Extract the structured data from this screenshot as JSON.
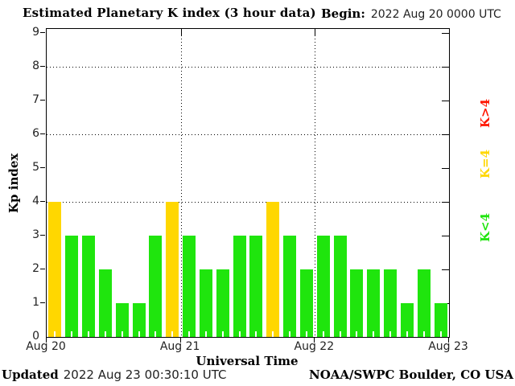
{
  "title": "Estimated Planetary K index (3 hour data)",
  "begin": {
    "label": "Begin:",
    "value": "2022 Aug 20 0000 UTC"
  },
  "footer": {
    "updated_label": "Updated",
    "updated_value": "2022 Aug 23 00:30:10 UTC",
    "credit": "NOAA/SWPC Boulder, CO USA"
  },
  "colors": {
    "green": "#1fe50d",
    "yellow": "#ffd700",
    "red": "#ff1500",
    "axis": "#000000"
  },
  "legend": [
    {
      "label": "K>4",
      "color_key": "red"
    },
    {
      "label": "K=4",
      "color_key": "yellow"
    },
    {
      "label": "K<4",
      "color_key": "green"
    }
  ],
  "chart_data": {
    "type": "bar",
    "title": "Estimated Planetary K index (3 hour data)",
    "xlabel": "Universal Time",
    "ylabel": "Kp index",
    "ylim": [
      0,
      9
    ],
    "y_ticks": [
      0,
      1,
      2,
      3,
      4,
      5,
      6,
      7,
      8,
      9
    ],
    "grid_y": [
      4,
      6,
      8
    ],
    "x_ticks": [
      "Aug 20",
      "Aug 21",
      "Aug 22",
      "Aug 23"
    ],
    "interval_hours": 3,
    "bars_per_day": 8,
    "values": [
      4,
      3,
      3,
      2,
      1,
      1,
      3,
      4,
      3,
      2,
      2,
      3,
      3,
      4,
      3,
      2,
      3,
      3,
      2,
      2,
      2,
      1,
      2,
      1
    ],
    "color_rule": {
      "green": "K<4",
      "yellow": "K=4",
      "red": "K>4"
    }
  }
}
